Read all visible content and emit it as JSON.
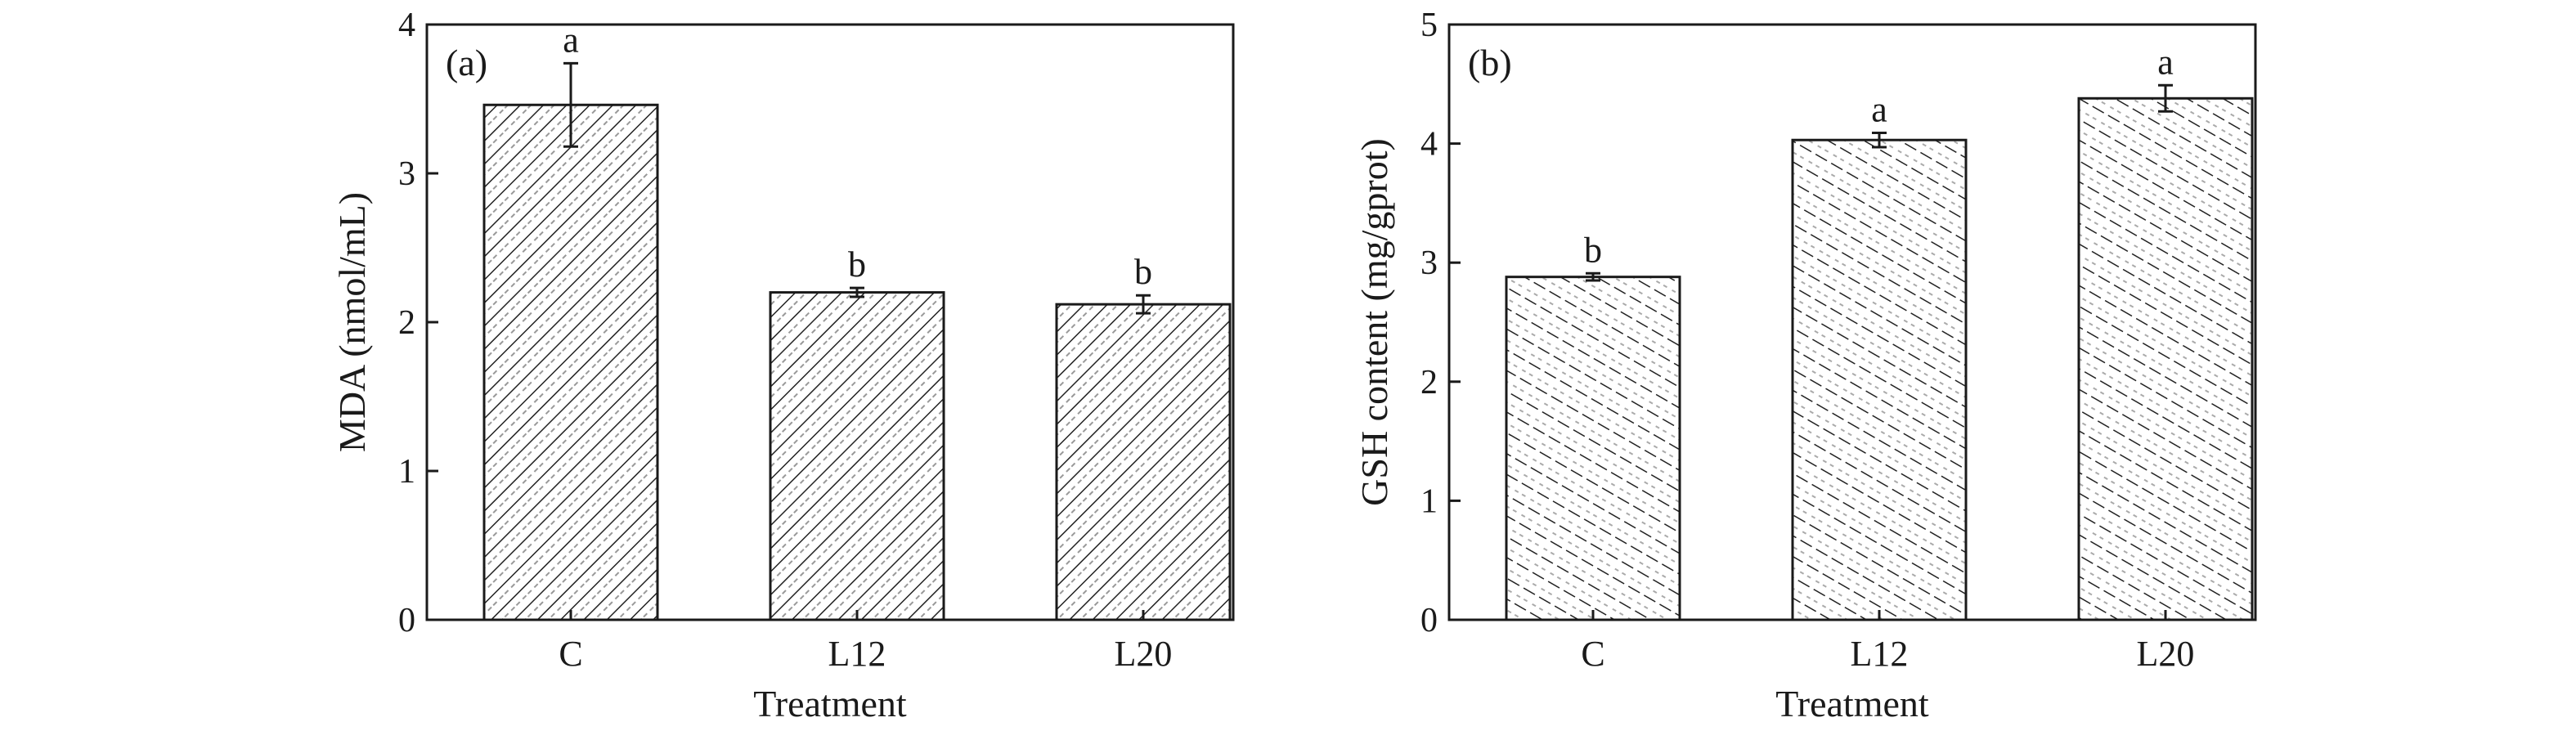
{
  "chart_data": [
    {
      "type": "bar",
      "panel_label": "(a)",
      "categories": [
        "C",
        "L12",
        "L20"
      ],
      "values": [
        3.46,
        2.2,
        2.12
      ],
      "errors": [
        0.28,
        0.03,
        0.06
      ],
      "significance": [
        "a",
        "b",
        "b"
      ],
      "xlabel": "Treatment",
      "ylabel": "MDA (nmol/mL)",
      "ylim": [
        0,
        4
      ],
      "yticks": [
        "0",
        "1",
        "2",
        "3",
        "4"
      ],
      "pattern": "diagonal-hatch",
      "grid": false,
      "legend": "none"
    },
    {
      "type": "bar",
      "panel_label": "(b)",
      "categories": [
        "C",
        "L12",
        "L20"
      ],
      "values": [
        2.88,
        4.03,
        4.38
      ],
      "errors": [
        0.03,
        0.06,
        0.11
      ],
      "significance": [
        "b",
        "a",
        "a"
      ],
      "xlabel": "Treatment",
      "ylabel": "GSH content (mg/gprot)",
      "ylim": [
        0,
        5
      ],
      "yticks": [
        "0",
        "1",
        "2",
        "3",
        "4",
        "5"
      ],
      "pattern": "dashed-hatch",
      "grid": false,
      "legend": "none"
    }
  ]
}
